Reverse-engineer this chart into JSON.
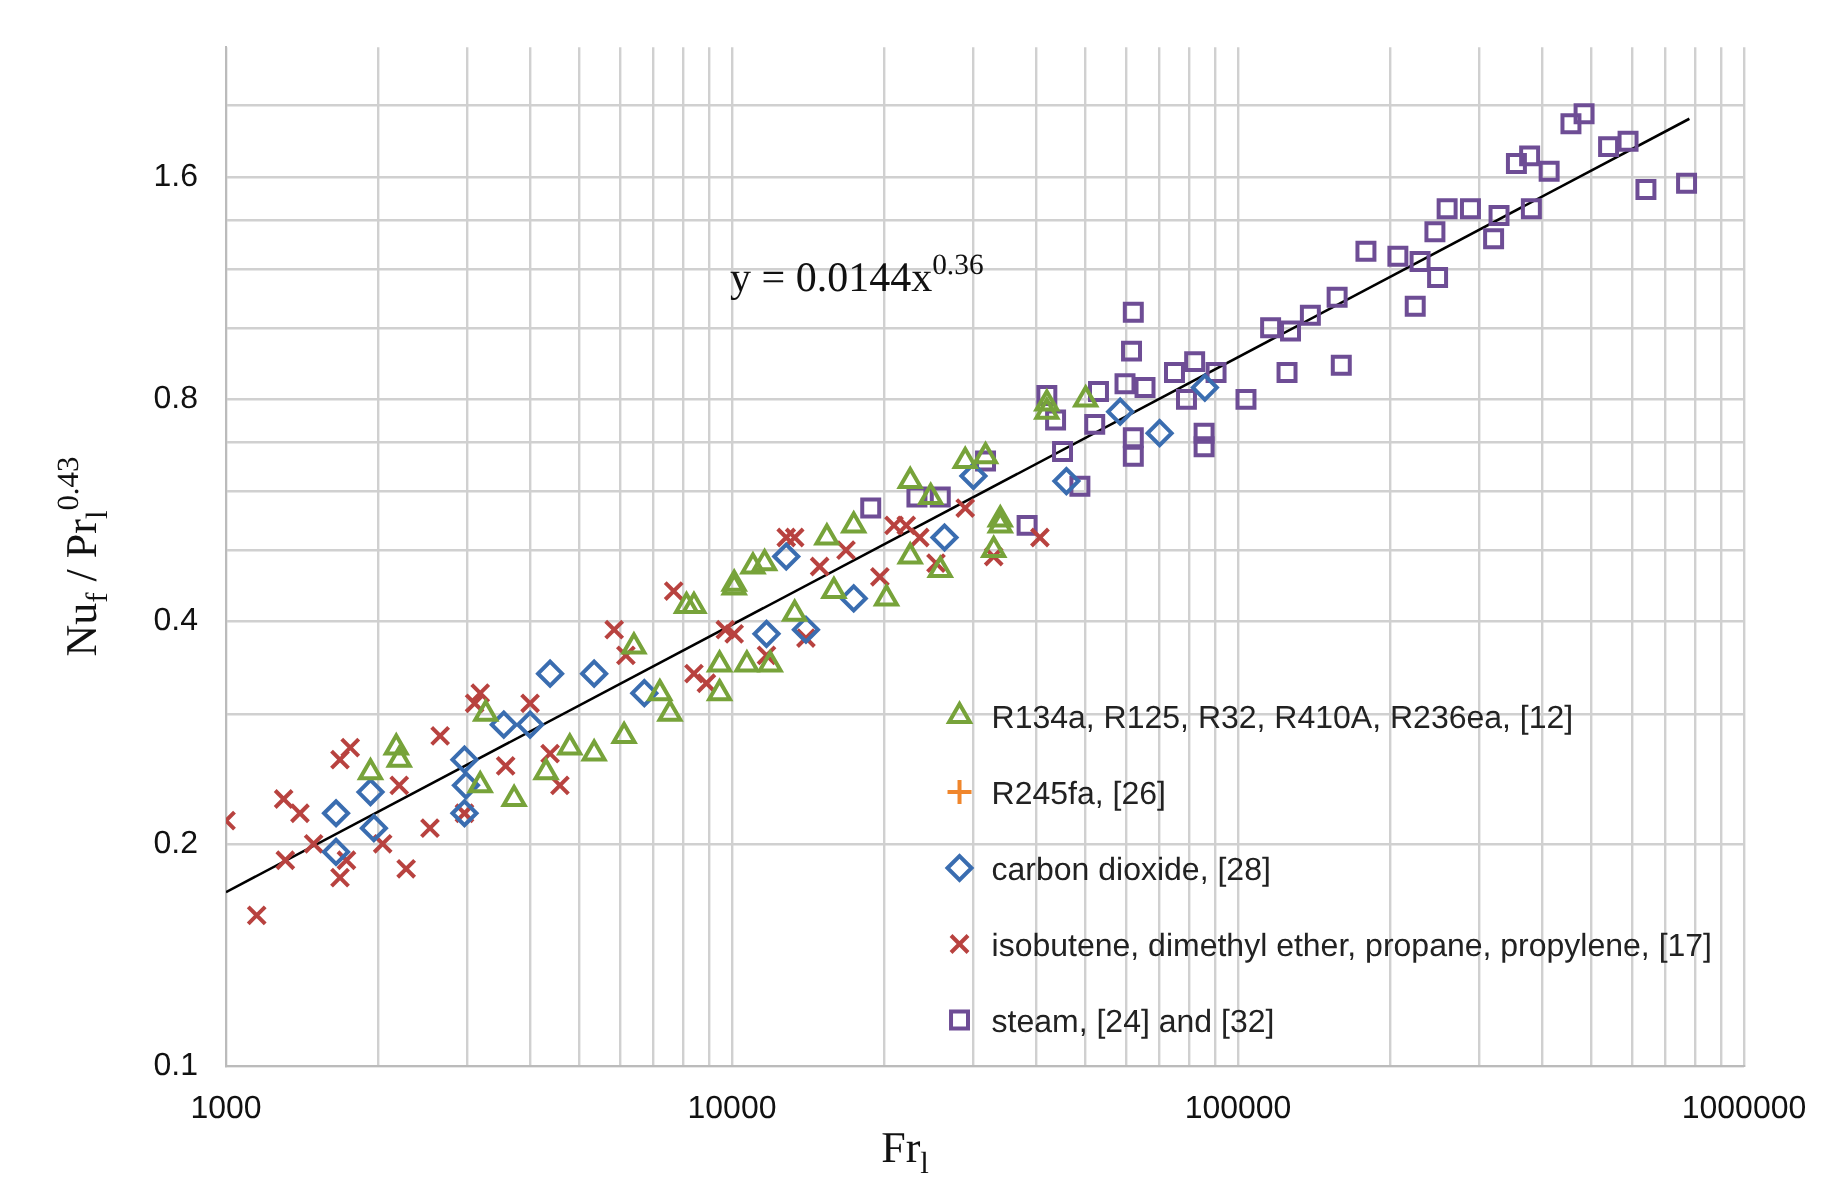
{
  "chart_data": {
    "type": "scatter",
    "xlabel": "Fr$_{l}$",
    "ylabel": "Nu$_{f}$ / Pr$_{l}$$^{0.43}$",
    "log": "xy",
    "grid": true,
    "legend": "bottom right",
    "xlim": [
      1000,
      1000000
    ],
    "ylim": [
      0.1,
      2.4
    ],
    "xticks": [
      1000,
      {
        "value": 2000,
        "label": null
      },
      {
        "value": 3000,
        "label": null
      },
      {
        "value": 4000,
        "label": null
      },
      {
        "value": 5000,
        "label": null
      },
      {
        "value": 6000,
        "label": null
      },
      {
        "value": 7000,
        "label": null
      },
      {
        "value": 8000,
        "label": null
      },
      {
        "value": 9000,
        "label": null
      },
      10000,
      {
        "value": 20000,
        "label": null
      },
      {
        "value": 30000,
        "label": null
      },
      {
        "value": 40000,
        "label": null
      },
      {
        "value": 50000,
        "label": null
      },
      {
        "value": 60000,
        "label": null
      },
      {
        "value": 70000,
        "label": null
      },
      {
        "value": 80000,
        "label": null
      },
      {
        "value": 90000,
        "label": null
      },
      100000,
      {
        "value": 200000,
        "label": null
      },
      {
        "value": 300000,
        "label": null
      },
      {
        "value": 400000,
        "label": null
      },
      {
        "value": 500000,
        "label": null
      },
      {
        "value": 600000,
        "label": null
      },
      {
        "value": 700000,
        "label": null
      },
      {
        "value": 800000,
        "label": null
      },
      {
        "value": 900000,
        "label": null
      },
      1000000
    ],
    "yticks": [
      0.1,
      0.2,
      {
        "value": 0.3,
        "label": null
      },
      0.4,
      {
        "value": 0.5,
        "label": null
      },
      {
        "value": 0.6,
        "label": null
      },
      {
        "value": 0.7,
        "label": null
      },
      0.8,
      {
        "value": 1.0,
        "label": null
      },
      {
        "value": 1.2,
        "label": null
      },
      {
        "value": 1.4,
        "label": null
      },
      1.6,
      {
        "value": 2.0,
        "label": null
      }
    ],
    "annotations": [
      "y = 0.0144x$^{0.36}$"
    ],
    "series": [
      {
        "name": "R134a, R125, R32, R410A, R236ea, [12]",
        "color": "#77a33a",
        "marker": "triangle",
        "x": [
          1930,
          2170,
          2200,
          3260,
          3180,
          3710,
          4290,
          4780,
          5340,
          6120,
          6400,
          7200,
          7540,
          8410,
          9450,
          10100,
          11000,
          11900,
          8130,
          10100,
          11600,
          9450,
          10700,
          13300,
          15900,
          20200,
          15400,
          17400,
          22500,
          24700,
          22500,
          25800,
          28900,
          31700,
          33900,
          32900,
          41900,
          50000,
          41900,
          33900
        ],
        "values": [
          0.25,
          0.27,
          0.26,
          0.3,
          0.24,
          0.23,
          0.25,
          0.27,
          0.265,
          0.28,
          0.37,
          0.32,
          0.3,
          0.42,
          0.32,
          0.445,
          0.475,
          0.35,
          0.42,
          0.45,
          0.48,
          0.35,
          0.35,
          0.41,
          0.44,
          0.43,
          0.52,
          0.54,
          0.62,
          0.59,
          0.49,
          0.47,
          0.66,
          0.67,
          0.55,
          0.5,
          0.77,
          0.8,
          0.79,
          0.54
        ]
      },
      {
        "name": "R245fa, [26]",
        "color": "#f0862c",
        "marker": "cross"
      },
      {
        "name": "carbon dioxide, [28]",
        "color": "#3a6db0",
        "marker": "diamond",
        "x": [
          1650,
          1650,
          1930,
          1960,
          2960,
          2960,
          2980,
          3540,
          3990,
          4370,
          5340,
          6710,
          11700,
          12800,
          14000,
          17400,
          26300,
          30000,
          45800,
          70000,
          86000,
          58500
        ],
        "values": [
          0.22,
          0.195,
          0.235,
          0.21,
          0.26,
          0.22,
          0.24,
          0.29,
          0.29,
          0.34,
          0.34,
          0.32,
          0.385,
          0.49,
          0.39,
          0.43,
          0.52,
          0.63,
          0.62,
          0.72,
          0.83,
          0.77
        ]
      },
      {
        "name": "isobutene, dimethyl ether, propane, propylene, [17]",
        "color": "#b8423f",
        "marker": "crossRot",
        "x": [
          1000,
          1150,
          1300,
          1400,
          1310,
          1490,
          1680,
          1760,
          1680,
          1730,
          2040,
          2270,
          2200,
          2530,
          2650,
          3100,
          3180,
          2960,
          3570,
          3990,
          4570,
          4370,
          5850,
          6170,
          7670,
          8410,
          8900,
          10100,
          12800,
          11700,
          13300,
          14900,
          16800,
          19600,
          20900,
          22100,
          23500,
          25300,
          28900,
          32900,
          40600,
          14000,
          9700
        ],
        "values": [
          0.215,
          0.16,
          0.23,
          0.22,
          0.19,
          0.2,
          0.26,
          0.27,
          0.18,
          0.19,
          0.2,
          0.185,
          0.24,
          0.21,
          0.28,
          0.31,
          0.32,
          0.22,
          0.255,
          0.31,
          0.24,
          0.265,
          0.39,
          0.36,
          0.44,
          0.34,
          0.33,
          0.385,
          0.52,
          0.36,
          0.52,
          0.475,
          0.5,
          0.46,
          0.54,
          0.54,
          0.52,
          0.48,
          0.57,
          0.49,
          0.52,
          0.38,
          0.39
        ]
      },
      {
        "name": "steam, [24] and [32]",
        "color": "#6e4d95",
        "marker": "square",
        "x": [
          18800,
          23200,
          25800,
          31700,
          38300,
          41900,
          43600,
          48700,
          45000,
          53000,
          52100,
          62100,
          61600,
          59800,
          65500,
          62100,
          62100,
          74900,
          82100,
          79100,
          85700,
          85700,
          90500,
          103700,
          116000,
          127000,
          125000,
          139000,
          157000,
          160000,
          179000,
          207000,
          224000,
          248000,
          229000,
          245000,
          259000,
          288000,
          320000,
          328000,
          380000,
          355000,
          377000,
          412000,
          455000,
          483000,
          540000,
          590000,
          640000,
          770000
        ],
        "values": [
          0.57,
          0.59,
          0.59,
          0.66,
          0.54,
          0.81,
          0.75,
          0.61,
          0.68,
          0.82,
          0.74,
          1.05,
          0.93,
          0.84,
          0.83,
          0.71,
          0.67,
          0.87,
          0.9,
          0.8,
          0.72,
          0.69,
          0.87,
          0.8,
          1.0,
          0.99,
          0.87,
          1.04,
          1.1,
          0.89,
          1.27,
          1.25,
          1.07,
          1.17,
          1.23,
          1.35,
          1.45,
          1.45,
          1.32,
          1.42,
          1.45,
          1.67,
          1.71,
          1.63,
          1.89,
          1.95,
          1.76,
          1.79,
          1.54,
          1.57
        ]
      },
      {
        "type": "line",
        "color": "#000000",
        "marker": "none",
        "x": [
          1000,
          780000
        ],
        "values": [
          0.172,
          1.92
        ]
      }
    ]
  }
}
